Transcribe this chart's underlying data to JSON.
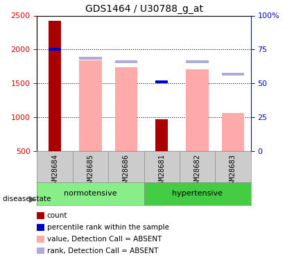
{
  "title": "GDS1464 / U30788_g_at",
  "samples": [
    "GSM28684",
    "GSM28685",
    "GSM28686",
    "GSM28681",
    "GSM28682",
    "GSM28683"
  ],
  "groups": [
    "normotensive",
    "normotensive",
    "normotensive",
    "hypertensive",
    "hypertensive",
    "hypertensive"
  ],
  "ylim_left": [
    500,
    2500
  ],
  "ylim_right": [
    0,
    100
  ],
  "yticks_left": [
    500,
    1000,
    1500,
    2000,
    2500
  ],
  "yticks_right": [
    0,
    25,
    50,
    75,
    100
  ],
  "ytick_labels_right": [
    "0",
    "25",
    "50",
    "75",
    "100%"
  ],
  "count_values": [
    2420,
    null,
    null,
    970,
    null,
    null
  ],
  "percentile_values": [
    2000,
    null,
    null,
    1520,
    null,
    null
  ],
  "value_absent": [
    null,
    1840,
    1740,
    null,
    1710,
    1060
  ],
  "rank_absent": [
    null,
    1870,
    1820,
    null,
    1820,
    1630
  ],
  "color_count": "#aa0000",
  "color_percentile": "#0000cc",
  "color_value_absent": "#ffaaaa",
  "color_rank_absent": "#aaaadd",
  "bar_width": 0.35,
  "group_normotensive_color": "#88ee88",
  "group_hypertensive_color": "#44cc44",
  "group_label_color": "#000000",
  "label_row_bg": "#cccccc",
  "dotted_grid_color": "#000000",
  "left_axis_color": "#cc0000",
  "right_axis_color": "#0000cc"
}
